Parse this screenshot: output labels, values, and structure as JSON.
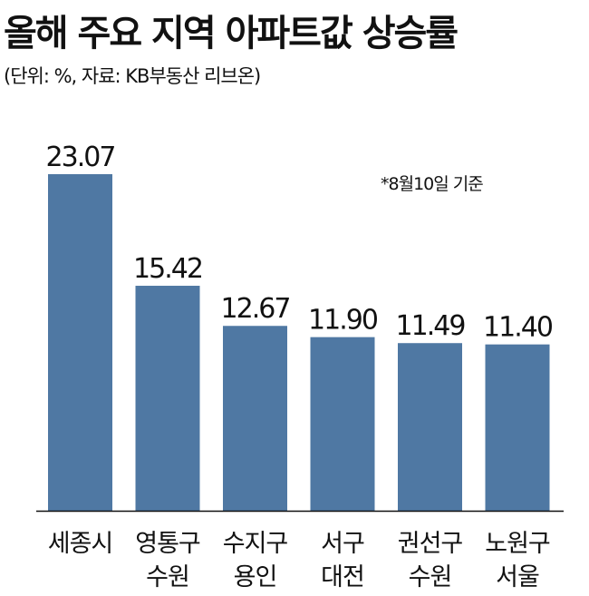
{
  "title": "올해 주요 지역 아파트값 상승률",
  "subtitle": "(단위: %, 자료: KB부동산 리브온)",
  "note": "*8월10일 기준",
  "colors": {
    "bar": "#4f78a3",
    "text": "#111111",
    "axis": "#111111"
  },
  "chart_data": {
    "type": "bar",
    "title": "올해 주요 지역 아파트값 상승률",
    "subtitle": "(단위: %, 자료: KB부동산 리브온)",
    "xlabel": "",
    "ylabel": "",
    "grid": false,
    "categories": [
      [
        "세종시"
      ],
      [
        "영통구",
        "수원"
      ],
      [
        "수지구",
        "용인"
      ],
      [
        "서구",
        "대전"
      ],
      [
        "권선구",
        "수원"
      ],
      [
        "노원구",
        "서울"
      ]
    ],
    "values": [
      23.07,
      15.42,
      12.67,
      11.9,
      11.49,
      11.4
    ],
    "value_labels": [
      "23.07",
      "15.42",
      "12.67",
      "11.90",
      "11.49",
      "11.40"
    ],
    "ylim": [
      0,
      23.07
    ]
  }
}
